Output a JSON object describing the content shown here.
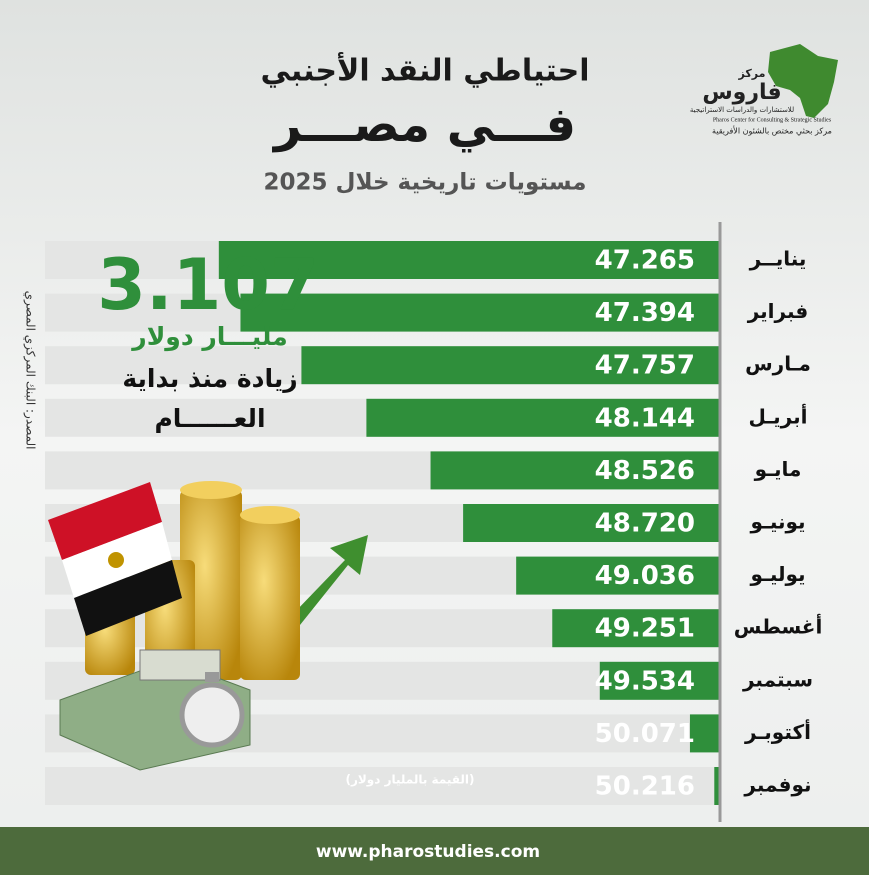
{
  "chart_data": {
    "type": "bar",
    "orientation": "horizontal",
    "title": "احتياطي النقد الأجنبي",
    "subtitle": "فـــي مصـــر",
    "caption": "مستويات تاريخية خلال 2025",
    "categories": [
      "ينايــر",
      "فبراير",
      "مـارس",
      "أبريـل",
      "مايـو",
      "يونيـو",
      "يوليـو",
      "أغسطس",
      "سبتمبر",
      "أكتوبـر",
      "نوفمبر"
    ],
    "values": [
      47.265,
      47.394,
      47.757,
      48.144,
      48.526,
      48.72,
      49.036,
      49.251,
      49.534,
      50.071,
      50.216
    ],
    "value_labels": [
      "47.265",
      "47.394",
      "47.757",
      "48.144",
      "48.526",
      "48.720",
      "49.036",
      "49.251",
      "49.534",
      "50.071",
      "50.216"
    ],
    "color": "#2f8f3b",
    "xlim": [
      46.2,
      50.25
    ],
    "annotations": {
      "highlight_value": "3.107",
      "highlight_unit": "مليـــار دولار",
      "highlight_text_1": "زيادة منذ بداية",
      "highlight_text_2": "العــــــام",
      "source": "المصدر: البنك المركزي المصري",
      "unit_note": "(القيمة بالمليار دولار)"
    }
  },
  "logo": {
    "name_small": "مركز",
    "name": "فاروس",
    "tagline_ar": "للاستشارات والدراسات الاستراتيجية",
    "tagline_en": "Pharos Center for Consulting & Strategic Studies",
    "description": "مركز بحثي مختص بالشئون الأفريقية"
  },
  "footer": "www.pharostudies.com"
}
